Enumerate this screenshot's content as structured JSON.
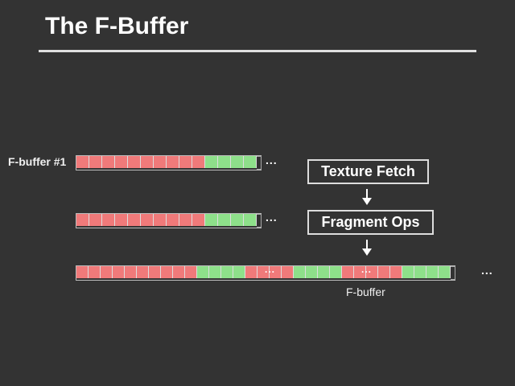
{
  "title": "The F-Buffer",
  "row_label": "F-buffer #1",
  "boxes": [
    "Texture Fetch",
    "Fragment Ops"
  ],
  "fbuffer_label": "F-buffer",
  "ellipsis": "...",
  "colors": {
    "red": "#f07a7a",
    "green": "#8ee08a",
    "background": "#333333"
  },
  "rows": [
    {
      "cells": "rrrrrrrrrrgggg"
    },
    {
      "cells": "rrrrrrrrrrgggg"
    },
    {
      "cells": "rrrrrrrrrrggggrrrrggggrrrrrgggg",
      "inner_ellipsis_at": [
        15,
        23
      ]
    }
  ]
}
